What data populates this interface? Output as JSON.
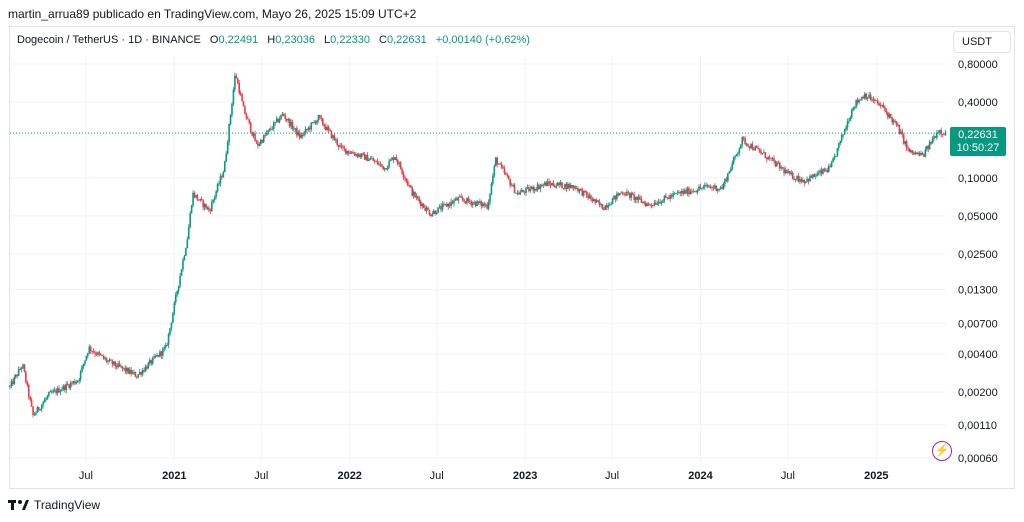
{
  "header": {
    "published_by": "martin_arrua89 publicado en TradingView.com, Mayo 26, 2025 15:09 UTC+2"
  },
  "legend": {
    "symbol": "Dogecoin / TetherUS · 1D · BINANCE",
    "open_label": "O",
    "open": "0,22491",
    "high_label": "H",
    "high": "0,23036",
    "low_label": "L",
    "low": "0,22330",
    "close_label": "C",
    "close": "0,22631",
    "change": "+0,00140 (+0,62%)"
  },
  "quote_currency": "USDT",
  "price_badge": {
    "price": "0,22631",
    "countdown": "10:50:27"
  },
  "footer": {
    "brand": "TradingView"
  },
  "colors": {
    "up": "#089981",
    "down": "#f23645",
    "grid": "#f0f3fa",
    "price_line": "#089981"
  },
  "chart_data": {
    "type": "candlestick",
    "y_scale": "log",
    "ylim": [
      0.0006,
      1.0
    ],
    "y_ticks": [
      {
        "v": 0.8,
        "label": "0,80000"
      },
      {
        "v": 0.4,
        "label": "0,40000"
      },
      {
        "v": 0.1,
        "label": "0,10000"
      },
      {
        "v": 0.05,
        "label": "0,05000"
      },
      {
        "v": 0.025,
        "label": "0,02500"
      },
      {
        "v": 0.013,
        "label": "0,01300"
      },
      {
        "v": 0.007,
        "label": "0,00700"
      },
      {
        "v": 0.004,
        "label": "0,00400"
      },
      {
        "v": 0.002,
        "label": "0,00200"
      },
      {
        "v": 0.0011,
        "label": "0,00110"
      },
      {
        "v": 0.0006,
        "label": "0,00060"
      }
    ],
    "x_range": [
      "2020-01-25",
      "2025-05-26"
    ],
    "x_ticks": [
      {
        "date": "2020-07-01",
        "label": "Jul",
        "bold": false
      },
      {
        "date": "2021-01-01",
        "label": "2021",
        "bold": true
      },
      {
        "date": "2021-07-01",
        "label": "Jul",
        "bold": false
      },
      {
        "date": "2022-01-01",
        "label": "2022",
        "bold": true
      },
      {
        "date": "2022-07-01",
        "label": "Jul",
        "bold": false
      },
      {
        "date": "2023-01-01",
        "label": "2023",
        "bold": true
      },
      {
        "date": "2023-07-01",
        "label": "Jul",
        "bold": false
      },
      {
        "date": "2024-01-01",
        "label": "2024",
        "bold": true
      },
      {
        "date": "2024-07-01",
        "label": "Jul",
        "bold": false
      },
      {
        "date": "2025-01-01",
        "label": "2025",
        "bold": true
      }
    ],
    "last_price": 0.22631,
    "price_path": [
      {
        "date": "2020-01-25",
        "price": 0.0022
      },
      {
        "date": "2020-02-20",
        "price": 0.0033
      },
      {
        "date": "2020-03-13",
        "price": 0.0013
      },
      {
        "date": "2020-04-15",
        "price": 0.0019
      },
      {
        "date": "2020-06-15",
        "price": 0.0025
      },
      {
        "date": "2020-07-07",
        "price": 0.0045
      },
      {
        "date": "2020-08-15",
        "price": 0.0035
      },
      {
        "date": "2020-10-15",
        "price": 0.0027
      },
      {
        "date": "2020-12-15",
        "price": 0.0045
      },
      {
        "date": "2021-01-29",
        "price": 0.035
      },
      {
        "date": "2021-02-08",
        "price": 0.075
      },
      {
        "date": "2021-03-15",
        "price": 0.055
      },
      {
        "date": "2021-04-15",
        "price": 0.12
      },
      {
        "date": "2021-05-08",
        "price": 0.68
      },
      {
        "date": "2021-05-25",
        "price": 0.35
      },
      {
        "date": "2021-06-22",
        "price": 0.18
      },
      {
        "date": "2021-08-15",
        "price": 0.32
      },
      {
        "date": "2021-09-20",
        "price": 0.21
      },
      {
        "date": "2021-10-28",
        "price": 0.3
      },
      {
        "date": "2021-12-15",
        "price": 0.17
      },
      {
        "date": "2022-02-15",
        "price": 0.14
      },
      {
        "date": "2022-03-15",
        "price": 0.12
      },
      {
        "date": "2022-04-05",
        "price": 0.15
      },
      {
        "date": "2022-05-12",
        "price": 0.075
      },
      {
        "date": "2022-06-18",
        "price": 0.052
      },
      {
        "date": "2022-08-15",
        "price": 0.068
      },
      {
        "date": "2022-10-15",
        "price": 0.06
      },
      {
        "date": "2022-11-01",
        "price": 0.14
      },
      {
        "date": "2022-12-15",
        "price": 0.075
      },
      {
        "date": "2023-02-15",
        "price": 0.09
      },
      {
        "date": "2023-04-15",
        "price": 0.085
      },
      {
        "date": "2023-06-12",
        "price": 0.058
      },
      {
        "date": "2023-07-22",
        "price": 0.078
      },
      {
        "date": "2023-09-15",
        "price": 0.061
      },
      {
        "date": "2023-11-15",
        "price": 0.075
      },
      {
        "date": "2024-01-15",
        "price": 0.085
      },
      {
        "date": "2024-02-15",
        "price": 0.083
      },
      {
        "date": "2024-03-28",
        "price": 0.2
      },
      {
        "date": "2024-05-15",
        "price": 0.15
      },
      {
        "date": "2024-07-05",
        "price": 0.105
      },
      {
        "date": "2024-08-05",
        "price": 0.095
      },
      {
        "date": "2024-09-28",
        "price": 0.12
      },
      {
        "date": "2024-11-15",
        "price": 0.38
      },
      {
        "date": "2024-12-08",
        "price": 0.46
      },
      {
        "date": "2025-01-15",
        "price": 0.36
      },
      {
        "date": "2025-02-15",
        "price": 0.25
      },
      {
        "date": "2025-03-10",
        "price": 0.16
      },
      {
        "date": "2025-04-08",
        "price": 0.15
      },
      {
        "date": "2025-05-10",
        "price": 0.24
      },
      {
        "date": "2025-05-26",
        "price": 0.22631
      }
    ]
  }
}
